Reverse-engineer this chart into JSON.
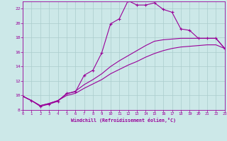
{
  "xlabel": "Windchill (Refroidissement éolien,°C)",
  "bg_color": "#cce8e8",
  "line_color": "#990099",
  "grid_color": "#aacccc",
  "xlim": [
    0,
    23
  ],
  "ylim": [
    8,
    23
  ],
  "xticks": [
    0,
    1,
    2,
    3,
    4,
    5,
    6,
    7,
    8,
    9,
    10,
    11,
    12,
    13,
    14,
    15,
    16,
    17,
    18,
    19,
    20,
    21,
    22,
    23
  ],
  "yticks": [
    8,
    10,
    12,
    14,
    16,
    18,
    20,
    22
  ],
  "main_x": [
    0,
    1,
    2,
    3,
    4,
    5,
    6,
    7,
    8,
    9,
    10,
    11,
    12,
    13,
    14,
    15,
    16,
    17,
    18,
    19,
    20,
    21,
    22,
    23
  ],
  "main_y": [
    9.9,
    9.3,
    8.5,
    8.8,
    9.2,
    10.3,
    10.5,
    12.8,
    13.5,
    15.9,
    19.9,
    20.6,
    23.1,
    22.5,
    22.5,
    22.8,
    21.9,
    21.5,
    19.2,
    19.0,
    17.9,
    17.9,
    17.9,
    16.5
  ],
  "lo1_x": [
    0,
    1,
    2,
    3,
    4,
    5,
    6,
    7,
    8,
    9,
    10,
    11,
    12,
    13,
    14,
    15,
    16,
    17,
    18,
    19,
    20,
    21,
    22,
    23
  ],
  "lo1_y": [
    9.9,
    9.3,
    8.6,
    8.9,
    9.3,
    10.2,
    10.6,
    11.5,
    12.2,
    13.0,
    14.0,
    14.8,
    15.5,
    16.2,
    16.9,
    17.5,
    17.7,
    17.8,
    17.9,
    17.9,
    17.9,
    17.9,
    17.9,
    16.5
  ],
  "lo2_x": [
    0,
    1,
    2,
    3,
    4,
    5,
    6,
    7,
    8,
    9,
    10,
    11,
    12,
    13,
    14,
    15,
    16,
    17,
    18,
    19,
    20,
    21,
    22,
    23
  ],
  "lo2_y": [
    9.9,
    9.3,
    8.6,
    8.9,
    9.3,
    10.0,
    10.3,
    11.0,
    11.6,
    12.2,
    13.0,
    13.6,
    14.2,
    14.7,
    15.3,
    15.8,
    16.2,
    16.5,
    16.7,
    16.8,
    16.9,
    17.0,
    17.0,
    16.5
  ]
}
